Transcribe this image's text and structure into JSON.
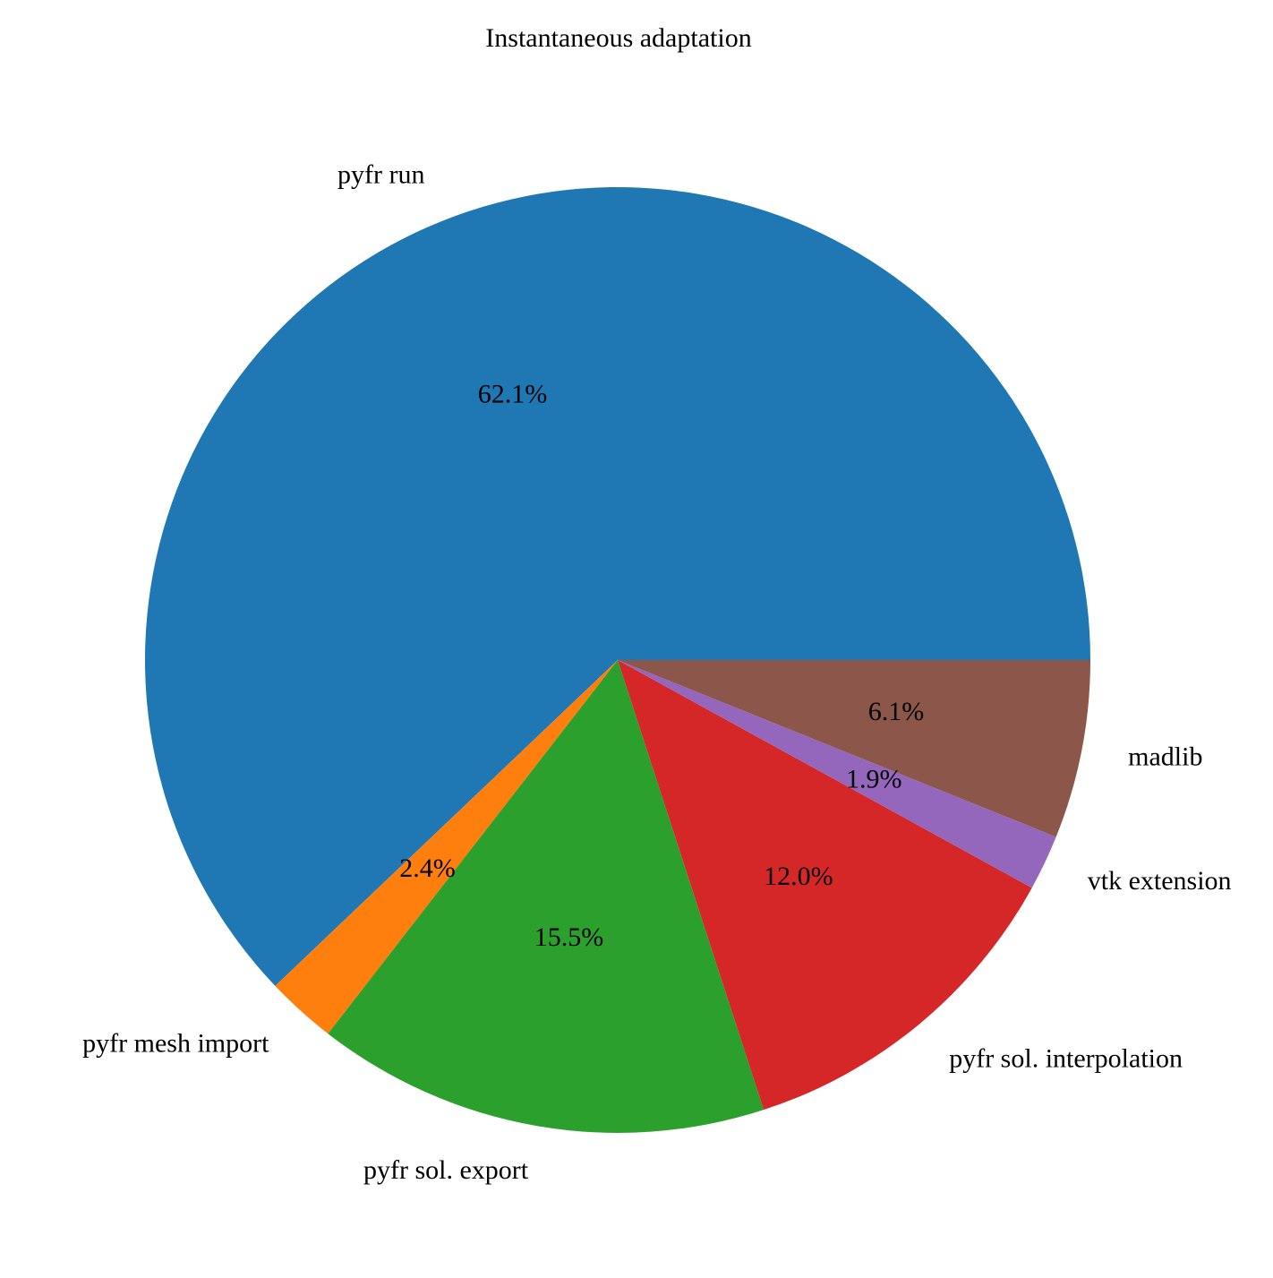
{
  "chart_data": {
    "type": "pie",
    "title": "Instantaneous adaptation",
    "start_angle_deg": 0,
    "direction": "counterclockwise",
    "slices": [
      {
        "label": "pyfr run",
        "value": 62.1,
        "pct_label": "62.1%",
        "color": "#1f77b4"
      },
      {
        "label": "pyfr mesh import",
        "value": 2.4,
        "pct_label": "2.4%",
        "color": "#ff7f0e"
      },
      {
        "label": "pyfr sol. export",
        "value": 15.5,
        "pct_label": "15.5%",
        "color": "#2ca02c"
      },
      {
        "label": "pyfr sol. interpolation",
        "value": 12.0,
        "pct_label": "12.0%",
        "color": "#d62728"
      },
      {
        "label": "vtk extension",
        "value": 1.9,
        "pct_label": "1.9%",
        "color": "#9467bd"
      },
      {
        "label": "madlib",
        "value": 6.1,
        "pct_label": "6.1%",
        "color": "#8c564b"
      }
    ]
  }
}
